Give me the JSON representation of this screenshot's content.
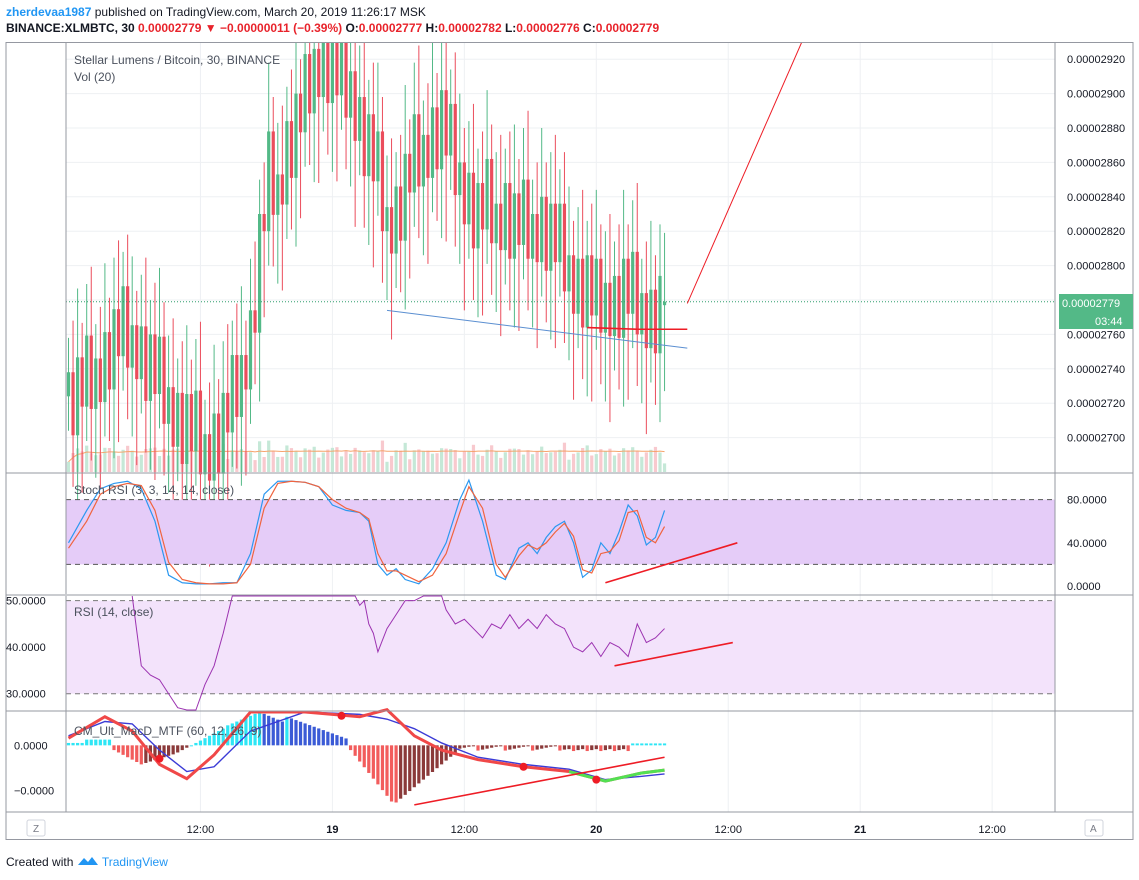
{
  "header": {
    "author": "zherdevaa1987",
    "published_text": "published on TradingView.com, March 20, 2019 11:26:17 MSK",
    "symbol": "BINANCE:XLMBTC, 30",
    "last": "0.00002779",
    "change_arrow": "▼",
    "change": "−0.00000011 (−0.39%)",
    "o_label": "O:",
    "o_value": "0.00002777",
    "h_label": "H:",
    "h_value": "0.00002782",
    "l_label": "L:",
    "l_value": "0.00002776",
    "c_label": "C:",
    "c_value": "0.00002779"
  },
  "footer": {
    "created_with": "Created with",
    "brand": "TradingView"
  },
  "colors": {
    "up": "#53b987",
    "down": "#eb4d5c",
    "vol_up": "#c5e8d7",
    "vol_down": "#f8c9ce",
    "vol_ma": "#f5a36b",
    "price_line": "#2f9e6b",
    "grid": "#eef0f3",
    "border": "#9598a1",
    "stoch_k": "#2c98f0",
    "stoch_d": "#f0643f",
    "stoch_band": "#e5ccf8",
    "rsi_line": "#9c33b1",
    "rsi_band": "#f3e3fb",
    "annotation_red": "#ee1c25",
    "trend_blue": "#5b8fd1"
  },
  "chart_data": [
    {
      "type": "candlestick",
      "title": "Stellar Lumens / Bitcoin, 30, BINANCE",
      "volume_label": "Vol (20)",
      "y_ticks": [
        "0.00002700",
        "0.00002720",
        "0.00002740",
        "0.00002760",
        "0.00002780",
        "0.00002800",
        "0.00002820",
        "0.00002840",
        "0.00002860",
        "0.00002880",
        "0.00002900",
        "0.00002920"
      ],
      "ylim": [
        2.68e-05,
        2.93e-05
      ],
      "x_ticks": [
        "12:00",
        "19",
        "12:00",
        "20",
        "12:00",
        "21",
        "12:00"
      ],
      "last_price_label": "0.00002779",
      "countdown_label": "03:44",
      "close_path": [
        [
          0,
          2.724e-05
        ],
        [
          3,
          2.728e-05
        ],
        [
          6,
          2.738e-05
        ],
        [
          9,
          2.752e-05
        ],
        [
          12,
          2.76e-05
        ],
        [
          15,
          2.756e-05
        ],
        [
          18,
          2.74e-05
        ],
        [
          21,
          2.726e-05
        ],
        [
          24,
          2.712e-05
        ],
        [
          27,
          2.702e-05
        ],
        [
          30,
          2.694e-05
        ],
        [
          32,
          2.7e-05
        ],
        [
          34,
          2.706e-05
        ],
        [
          36,
          2.72e-05
        ],
        [
          38,
          2.74e-05
        ],
        [
          40,
          2.76e-05
        ],
        [
          42,
          2.81e-05
        ],
        [
          44,
          2.85e-05
        ],
        [
          46,
          2.845e-05
        ],
        [
          48,
          2.87e-05
        ],
        [
          50,
          2.88e-05
        ],
        [
          52,
          2.895e-05
        ],
        [
          54,
          2.918e-05
        ],
        [
          56,
          2.922e-05
        ],
        [
          58,
          2.915e-05
        ],
        [
          60,
          2.903e-05
        ],
        [
          62,
          2.905e-05
        ],
        [
          64,
          2.884e-05
        ],
        [
          66,
          2.868e-05
        ],
        [
          68,
          2.85e-05
        ],
        [
          70,
          2.826e-05
        ],
        [
          72,
          2.832e-05
        ],
        [
          74,
          2.845e-05
        ],
        [
          76,
          2.86e-05
        ],
        [
          78,
          2.868e-05
        ],
        [
          80,
          2.878e-05
        ],
        [
          82,
          2.882e-05
        ],
        [
          84,
          2.866e-05
        ],
        [
          86,
          2.852e-05
        ],
        [
          88,
          2.84e-05
        ],
        [
          90,
          2.828e-05
        ],
        [
          92,
          2.834e-05
        ],
        [
          94,
          2.828e-05
        ],
        [
          96,
          2.834e-05
        ],
        [
          98,
          2.822e-05
        ],
        [
          100,
          2.822e-05
        ],
        [
          102,
          2.822e-05
        ],
        [
          104,
          2.826e-05
        ],
        [
          106,
          2.816e-05
        ],
        [
          108,
          2.808e-05
        ],
        [
          110,
          2.798e-05
        ],
        [
          112,
          2.79e-05
        ],
        [
          114,
          2.786e-05
        ],
        [
          116,
          2.776e-05
        ],
        [
          118,
          2.782e-05
        ],
        [
          120,
          2.78e-05
        ],
        [
          122,
          2.784e-05
        ],
        [
          124,
          2.78e-05
        ],
        [
          126,
          2.776e-05
        ],
        [
          128,
          2.772e-05
        ],
        [
          130,
          2.774e-05
        ],
        [
          131,
          2.779e-05
        ]
      ],
      "annotations": [
        {
          "kind": "trendline",
          "color": "blue",
          "from": [
            70,
            2.774e-05
          ],
          "to": [
            136,
            2.752e-05
          ]
        },
        {
          "kind": "trendline",
          "color": "red",
          "from": [
            114,
            2.764e-05
          ],
          "to": [
            125,
            2.763e-05
          ]
        },
        {
          "kind": "trendline",
          "color": "red",
          "from": [
            125,
            2.763e-05
          ],
          "to": [
            136,
            2.763e-05
          ]
        },
        {
          "kind": "projection",
          "color": "red",
          "from": [
            136,
            2.778e-05
          ],
          "to": [
            162,
            2.935e-05
          ]
        }
      ]
    },
    {
      "type": "line",
      "title": "Stoch RSI (3, 3, 14, 14, close)",
      "y_ticks": [
        "0.0000",
        "40.0000",
        "80.0000"
      ],
      "ylim": [
        0,
        100
      ],
      "bands": [
        20,
        80
      ],
      "series": [
        {
          "name": "K",
          "points": [
            [
              0,
              40
            ],
            [
              4,
              70
            ],
            [
              7,
              90
            ],
            [
              10,
              95
            ],
            [
              13,
              97
            ],
            [
              16,
              90
            ],
            [
              19,
              60
            ],
            [
              22,
              10
            ],
            [
              25,
              3
            ],
            [
              28,
              2
            ],
            [
              31,
              2
            ],
            [
              34,
              3
            ],
            [
              37,
              3
            ],
            [
              40,
              30
            ],
            [
              43,
              85
            ],
            [
              46,
              97
            ],
            [
              49,
              97
            ],
            [
              52,
              96
            ],
            [
              55,
              92
            ],
            [
              58,
              75
            ],
            [
              61,
              70
            ],
            [
              64,
              68
            ],
            [
              66,
              60
            ],
            [
              68,
              20
            ],
            [
              70,
              10
            ],
            [
              72,
              16
            ],
            [
              74,
              6
            ],
            [
              77,
              2
            ],
            [
              80,
              16
            ],
            [
              83,
              40
            ],
            [
              86,
              80
            ],
            [
              88,
              98
            ],
            [
              91,
              60
            ],
            [
              94,
              10
            ],
            [
              96,
              6
            ],
            [
              99,
              35
            ],
            [
              101,
              40
            ],
            [
              103,
              30
            ],
            [
              105,
              45
            ],
            [
              107,
              55
            ],
            [
              109,
              60
            ],
            [
              111,
              40
            ],
            [
              113,
              8
            ],
            [
              115,
              15
            ],
            [
              117,
              40
            ],
            [
              119,
              30
            ],
            [
              121,
              50
            ],
            [
              123,
              75
            ],
            [
              125,
              65
            ],
            [
              127,
              38
            ],
            [
              129,
              45
            ],
            [
              131,
              70
            ]
          ]
        },
        {
          "name": "D",
          "points": [
            [
              0,
              35
            ],
            [
              4,
              60
            ],
            [
              7,
              85
            ],
            [
              10,
              92
            ],
            [
              13,
              95
            ],
            [
              16,
              93
            ],
            [
              19,
              70
            ],
            [
              22,
              22
            ],
            [
              25,
              6
            ],
            [
              28,
              3
            ],
            [
              31,
              2
            ],
            [
              34,
              2
            ],
            [
              37,
              3
            ],
            [
              40,
              20
            ],
            [
              43,
              72
            ],
            [
              46,
              95
            ],
            [
              49,
              97
            ],
            [
              52,
              96
            ],
            [
              55,
              92
            ],
            [
              58,
              80
            ],
            [
              61,
              72
            ],
            [
              64,
              68
            ],
            [
              66,
              62
            ],
            [
              68,
              30
            ],
            [
              70,
              14
            ],
            [
              72,
              14
            ],
            [
              74,
              10
            ],
            [
              77,
              4
            ],
            [
              80,
              10
            ],
            [
              83,
              30
            ],
            [
              86,
              68
            ],
            [
              88,
              92
            ],
            [
              91,
              72
            ],
            [
              94,
              20
            ],
            [
              96,
              8
            ],
            [
              99,
              28
            ],
            [
              101,
              38
            ],
            [
              103,
              34
            ],
            [
              105,
              40
            ],
            [
              107,
              50
            ],
            [
              109,
              58
            ],
            [
              111,
              46
            ],
            [
              113,
              15
            ],
            [
              115,
              12
            ],
            [
              117,
              30
            ],
            [
              119,
              32
            ],
            [
              121,
              42
            ],
            [
              123,
              68
            ],
            [
              125,
              70
            ],
            [
              127,
              45
            ],
            [
              129,
              40
            ],
            [
              131,
              55
            ]
          ]
        }
      ]
    },
    {
      "type": "line",
      "title": "RSI (14, close)",
      "y_ticks": [
        "30.0000",
        "40.0000",
        "50.0000"
      ],
      "ylim": [
        26.5,
        51
      ],
      "bands": [
        30,
        50
      ],
      "series": [
        {
          "name": "RSI",
          "points": [
            [
              14,
              51
            ],
            [
              16,
              36
            ],
            [
              18,
              34
            ],
            [
              20,
              33
            ],
            [
              22,
              30
            ],
            [
              24,
              27
            ],
            [
              26,
              26.5
            ],
            [
              28,
              26.5
            ],
            [
              30,
              32
            ],
            [
              32,
              36
            ],
            [
              34,
              43
            ],
            [
              36,
              51
            ],
            [
              63,
              51
            ],
            [
              64,
              49
            ],
            [
              65,
              50
            ],
            [
              66,
              45
            ],
            [
              67,
              43
            ],
            [
              68,
              39
            ],
            [
              70,
              44
            ],
            [
              72,
              47
            ],
            [
              74,
              50
            ],
            [
              76,
              50
            ],
            [
              78,
              51
            ],
            [
              82,
              51
            ],
            [
              83,
              48
            ],
            [
              85,
              45
            ],
            [
              87,
              46
            ],
            [
              89,
              44
            ],
            [
              91,
              42
            ],
            [
              93,
              45
            ],
            [
              95,
              44
            ],
            [
              97,
              47
            ],
            [
              99,
              44
            ],
            [
              101,
              46
            ],
            [
              103,
              44
            ],
            [
              105,
              47
            ],
            [
              107,
              45
            ],
            [
              109,
              44
            ],
            [
              111,
              40
            ],
            [
              113,
              39
            ],
            [
              115,
              41
            ],
            [
              117,
              38
            ],
            [
              119,
              41
            ],
            [
              121,
              40
            ],
            [
              123,
              38
            ],
            [
              125,
              45
            ],
            [
              127,
              41
            ],
            [
              129,
              42
            ],
            [
              131,
              44
            ]
          ]
        }
      ]
    },
    {
      "type": "bar",
      "title": "CM_Ult_MacD_MTF (60, 12, 26, 9)",
      "y_ticks": [
        "−0.0000",
        "0.0000"
      ],
      "ylim": [
        -1.4,
        0.7
      ]
    }
  ]
}
